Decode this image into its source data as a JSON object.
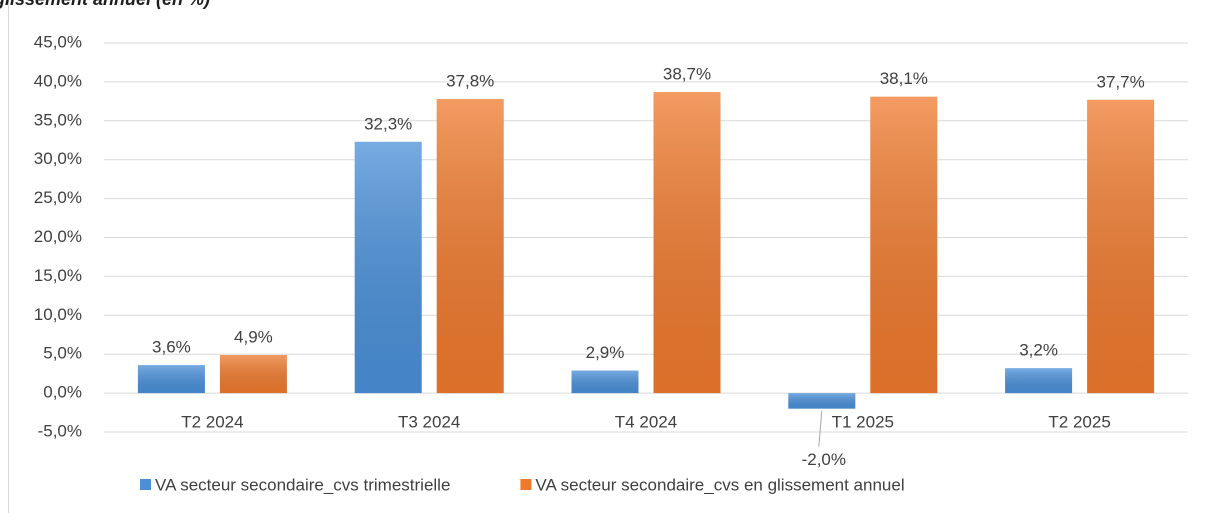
{
  "chart_data": {
    "type": "bar",
    "title": "glissement annuel (en %)",
    "categories": [
      "T2 2024",
      "T3 2024",
      "T4 2024",
      "T1 2025",
      "T2 2025"
    ],
    "series": [
      {
        "name": "VA secteur secondaire_cvs trimestrielle",
        "color": "#4a90d9",
        "values": [
          3.6,
          32.3,
          2.9,
          -2.0,
          3.2
        ],
        "value_labels": [
          "3,6%",
          "32,3%",
          "2,9%",
          "-2,0%",
          "3,2%"
        ]
      },
      {
        "name": "VA secteur secondaire_cvs en glissement annuel",
        "color": "#ef7a2e",
        "values": [
          4.9,
          37.8,
          38.7,
          38.1,
          37.7
        ],
        "value_labels": [
          "4,9%",
          "37,8%",
          "38,7%",
          "38,1%",
          "37,7%"
        ]
      }
    ],
    "ylim": [
      -5,
      45
    ],
    "yticks": [
      {
        "value": -5,
        "label": "-5,0%"
      },
      {
        "value": 0,
        "label": "0,0%"
      },
      {
        "value": 5,
        "label": "5,0%"
      },
      {
        "value": 10,
        "label": "10,0%"
      },
      {
        "value": 15,
        "label": "15,0%"
      },
      {
        "value": 20,
        "label": "20,0%"
      },
      {
        "value": 25,
        "label": "25,0%"
      },
      {
        "value": 30,
        "label": "30,0%"
      },
      {
        "value": 35,
        "label": "35,0%"
      },
      {
        "value": 40,
        "label": "40,0%"
      },
      {
        "value": 45,
        "label": "45,0%"
      }
    ],
    "grid": true,
    "legend": "bottom"
  }
}
